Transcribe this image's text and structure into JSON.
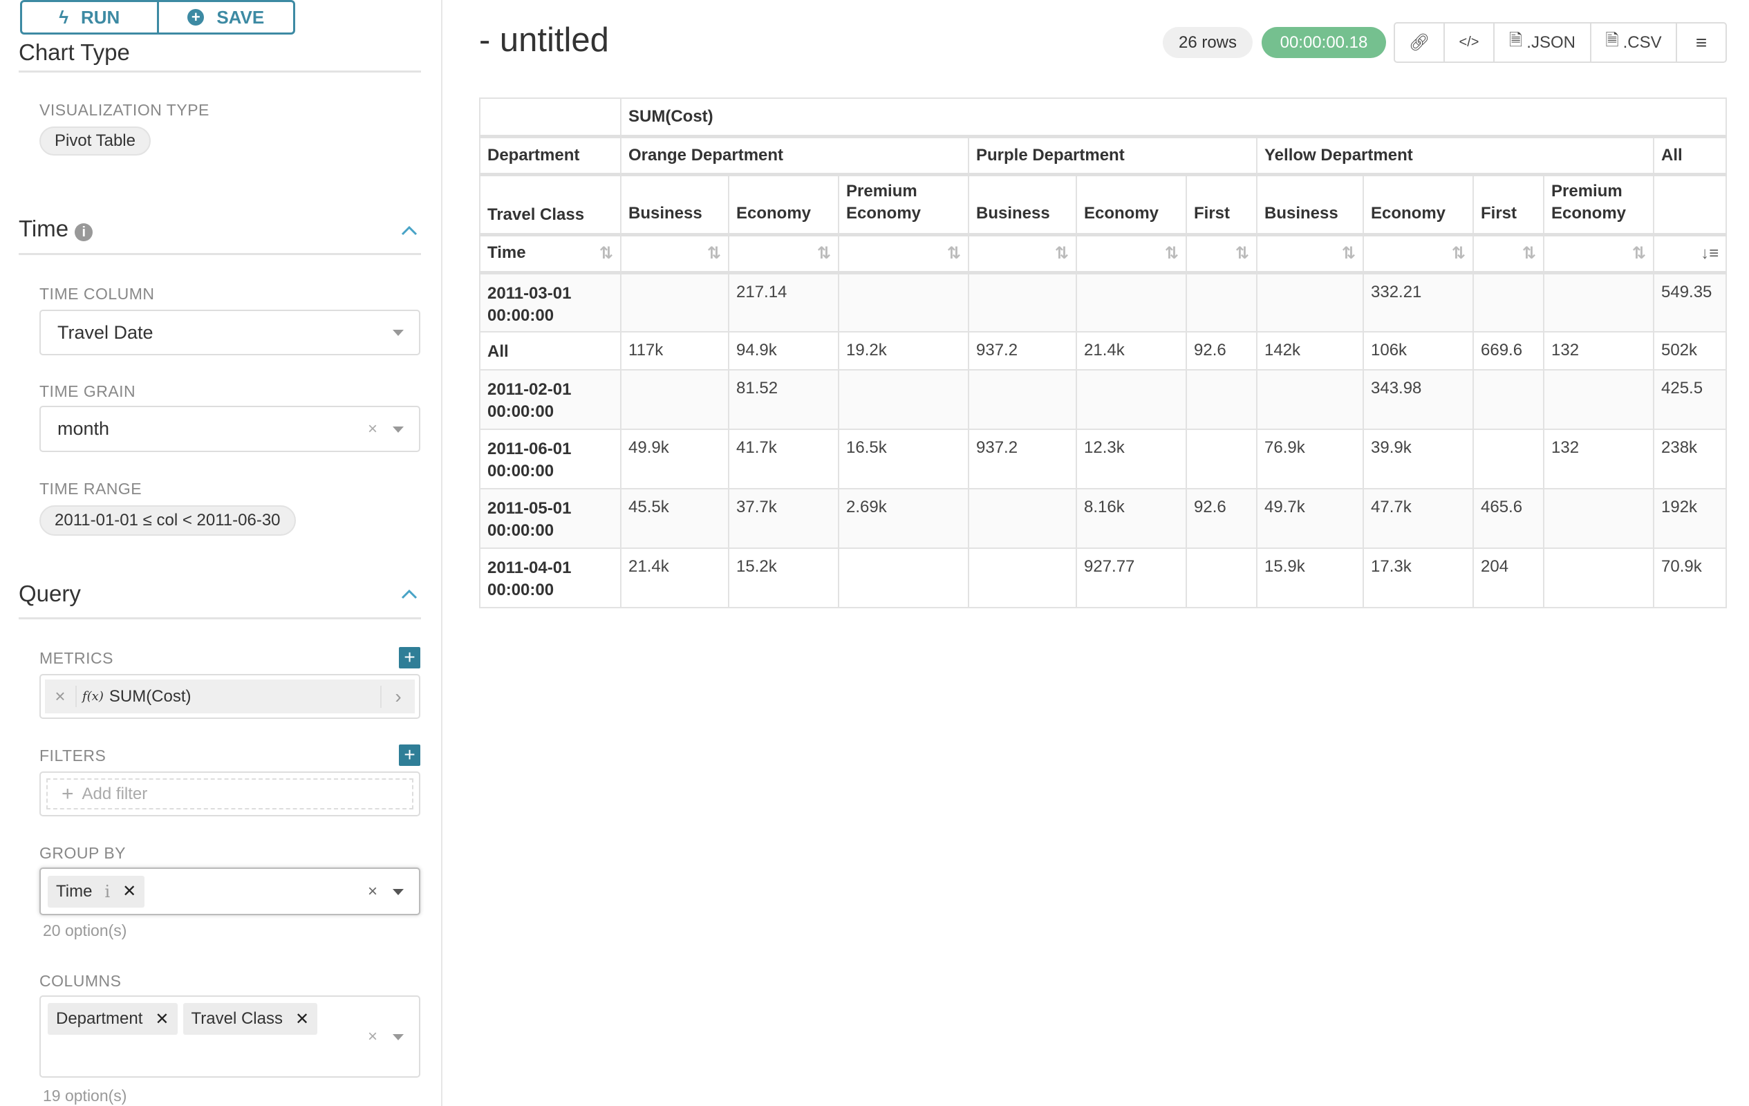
{
  "toolbar": {
    "run_label": "RUN",
    "save_label": "SAVE"
  },
  "sidebar": {
    "chart_type_heading": "Chart Type",
    "visualization_type_label": "VISUALIZATION TYPE",
    "visualization_type_value": "Pivot Table",
    "time_heading": "Time",
    "time_column_label": "TIME COLUMN",
    "time_column_value": "Travel Date",
    "time_grain_label": "TIME GRAIN",
    "time_grain_value": "month",
    "time_range_label": "TIME RANGE",
    "time_range_value": "2011-01-01 ≤ col < 2011-06-30",
    "query_heading": "Query",
    "metrics_label": "METRICS",
    "metric_value": "SUM(Cost)",
    "metric_fx": "f(x)",
    "filters_label": "FILTERS",
    "filters_placeholder": "Add filter",
    "group_by_label": "GROUP BY",
    "group_by_tags": [
      "Time"
    ],
    "group_by_hint": "20 option(s)",
    "columns_label": "COLUMNS",
    "columns_tags": [
      "Department",
      "Travel Class"
    ],
    "columns_hint": "19 option(s)"
  },
  "header": {
    "title": "- untitled",
    "row_count": "26 rows",
    "timer": "00:00:00.18",
    "json_label": ".JSON",
    "csv_label": ".CSV"
  },
  "colors": {
    "accent": "#3d8aa3",
    "timer_bg": "#75c08f",
    "plus_bg": "#2f7e97"
  },
  "table": {
    "metric": "SUM(Cost)",
    "department_label": "Department",
    "travel_class_label": "Travel Class",
    "time_label": "Time",
    "departments": [
      {
        "name": "Orange Department",
        "span": 3
      },
      {
        "name": "Purple Department",
        "span": 3
      },
      {
        "name": "Yellow Department",
        "span": 4
      },
      {
        "name": "All",
        "span": 1
      }
    ],
    "classes": [
      "Business",
      "Economy",
      "Premium Economy",
      "Business",
      "Economy",
      "First",
      "Business",
      "Economy",
      "First",
      "Premium Economy",
      ""
    ],
    "rows": [
      {
        "time": "2011-03-01 00:00:00",
        "values": [
          "",
          "217.14",
          "",
          "",
          "",
          "",
          "",
          "332.21",
          "",
          "",
          "549.35"
        ]
      },
      {
        "time": "All",
        "values": [
          "117k",
          "94.9k",
          "19.2k",
          "937.2",
          "21.4k",
          "92.6",
          "142k",
          "106k",
          "669.6",
          "132",
          "502k"
        ]
      },
      {
        "time": "2011-02-01 00:00:00",
        "values": [
          "",
          "81.52",
          "",
          "",
          "",
          "",
          "",
          "343.98",
          "",
          "",
          "425.5"
        ]
      },
      {
        "time": "2011-06-01 00:00:00",
        "values": [
          "49.9k",
          "41.7k",
          "16.5k",
          "937.2",
          "12.3k",
          "",
          "76.9k",
          "39.9k",
          "",
          "132",
          "238k"
        ]
      },
      {
        "time": "2011-05-01 00:00:00",
        "values": [
          "45.5k",
          "37.7k",
          "2.69k",
          "",
          "8.16k",
          "92.6",
          "49.7k",
          "47.7k",
          "465.6",
          "",
          "192k"
        ]
      },
      {
        "time": "2011-04-01 00:00:00",
        "values": [
          "21.4k",
          "15.2k",
          "",
          "",
          "927.77",
          "",
          "15.9k",
          "17.3k",
          "204",
          "",
          "70.9k"
        ]
      }
    ]
  }
}
